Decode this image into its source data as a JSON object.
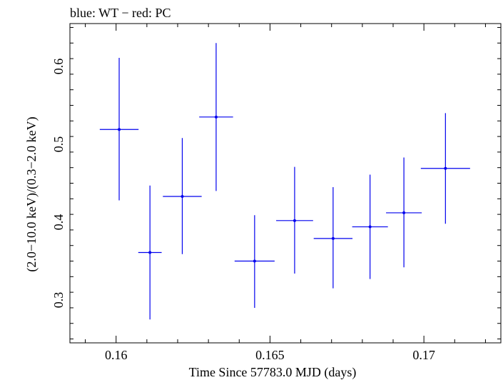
{
  "chart_data": {
    "type": "scatter",
    "title": "blue: WT − red: PC",
    "xlabel": "Time Since 57783.0 MJD (days)",
    "ylabel": "(2.0−10.0 keV)/(0.3−2.0 keV)",
    "xlim": [
      0.1585,
      0.1725
    ],
    "ylim": [
      0.245,
      0.655
    ],
    "x_ticks": [
      {
        "value": 0.16,
        "label": "0.16"
      },
      {
        "value": 0.165,
        "label": "0.165"
      },
      {
        "value": 0.17,
        "label": "0.17"
      }
    ],
    "y_ticks": [
      {
        "value": 0.3,
        "label": "0.3"
      },
      {
        "value": 0.4,
        "label": "0.4"
      },
      {
        "value": 0.5,
        "label": "0.5"
      },
      {
        "value": 0.6,
        "label": "0.6"
      }
    ],
    "grid": false,
    "series": [
      {
        "name": "WT",
        "color": "#0000ee",
        "points": [
          {
            "x": 0.1601,
            "y": 0.519,
            "xerr": 0.00063,
            "ylo": 0.428,
            "yhi": 0.611
          },
          {
            "x": 0.1611,
            "y": 0.361,
            "xerr": 0.00038,
            "ylo": 0.275,
            "yhi": 0.447
          },
          {
            "x": 0.16215,
            "y": 0.433,
            "xerr": 0.00063,
            "ylo": 0.359,
            "yhi": 0.508
          },
          {
            "x": 0.16325,
            "y": 0.535,
            "xerr": 0.00055,
            "ylo": 0.44,
            "yhi": 0.63
          },
          {
            "x": 0.1645,
            "y": 0.35,
            "xerr": 0.00065,
            "ylo": 0.29,
            "yhi": 0.409
          },
          {
            "x": 0.1658,
            "y": 0.402,
            "xerr": 0.0006,
            "ylo": 0.334,
            "yhi": 0.471
          },
          {
            "x": 0.16705,
            "y": 0.379,
            "xerr": 0.00063,
            "ylo": 0.315,
            "yhi": 0.445
          },
          {
            "x": 0.16825,
            "y": 0.394,
            "xerr": 0.00058,
            "ylo": 0.327,
            "yhi": 0.461
          },
          {
            "x": 0.16935,
            "y": 0.412,
            "xerr": 0.00058,
            "ylo": 0.342,
            "yhi": 0.483
          },
          {
            "x": 0.1707,
            "y": 0.469,
            "xerr": 0.0008,
            "ylo": 0.398,
            "yhi": 0.54
          }
        ]
      }
    ]
  }
}
